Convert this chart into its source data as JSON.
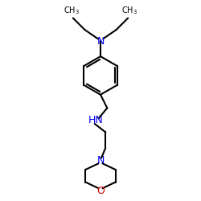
{
  "bg_color": "#ffffff",
  "bond_color": "#000000",
  "N_color": "#0000ff",
  "O_color": "#cc0000",
  "C_color": "#000000",
  "line_width": 1.5,
  "figsize": [
    2.5,
    2.5
  ],
  "dpi": 100,
  "xlim": [
    0,
    10
  ],
  "ylim": [
    0,
    12
  ]
}
